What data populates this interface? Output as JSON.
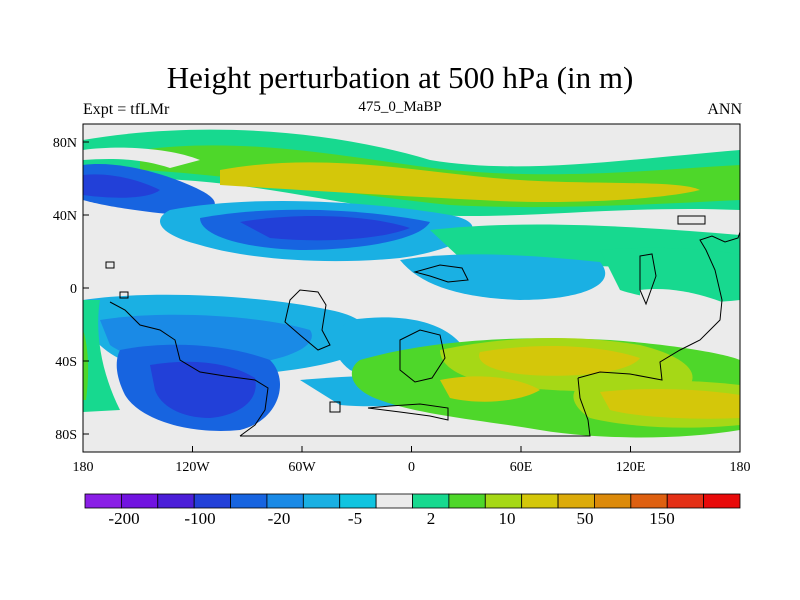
{
  "chart_data": {
    "type": "heatmap",
    "title": "Height perturbation at 500 hPa (in m)",
    "left_string": "Expt = tfLMr",
    "center_string": "475_0_MaBP",
    "right_string": "ANN",
    "x_ticks": [
      "180",
      "120W",
      "60W",
      "0",
      "60E",
      "120E",
      "180"
    ],
    "y_ticks": [
      "80N",
      "40N",
      "0",
      "40S",
      "80S"
    ],
    "x_range": [
      -180,
      180
    ],
    "y_range": [
      -90,
      90
    ],
    "levels": [
      "-200",
      "-100",
      "-20",
      "-5",
      "2",
      "10",
      "50",
      "150"
    ],
    "colorbar_colors": [
      "#8a1ee6",
      "#7113e0",
      "#4b1ed8",
      "#2240d8",
      "#1764e0",
      "#1a8ae6",
      "#1ab0e3",
      "#11c4e0",
      "#ebebeb",
      "#17d98f",
      "#4ed72a",
      "#a6d816",
      "#d4c70a",
      "#dcab0a",
      "#dc8a0a",
      "#de6010",
      "#e43016",
      "#e80a0a"
    ]
  }
}
